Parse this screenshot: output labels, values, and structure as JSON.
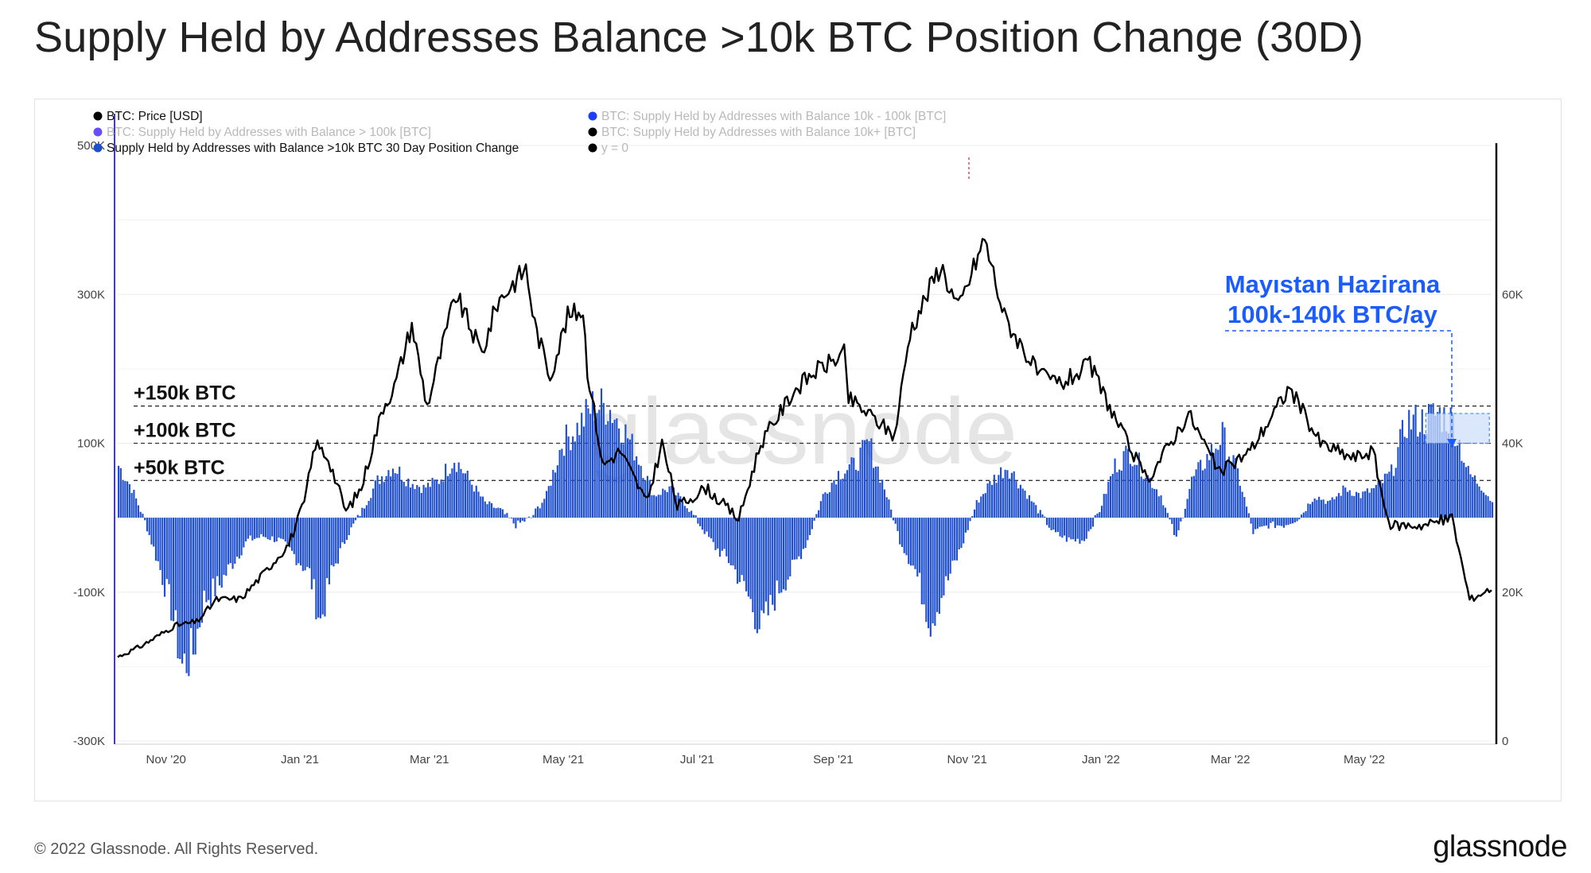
{
  "title": "Supply Held by Addresses Balance >10k BTC Position Change (30D)",
  "footer": {
    "copyright": "© 2022 Glassnode. All Rights Reserved.",
    "logo": "glassnode"
  },
  "watermark": "glassnode",
  "legend": [
    {
      "label": "BTC: Price [USD]",
      "color": "#000000",
      "active": true
    },
    {
      "label": "BTC: Supply Held by Addresses with Balance 10k - 100k [BTC]",
      "color": "#1f3cff",
      "active": false
    },
    {
      "label": "BTC: Supply Held by Addresses with Balance > 100k [BTC]",
      "color": "#6a4cff",
      "active": false
    },
    {
      "label": "BTC: Supply Held by Addresses with Balance 10k+ [BTC]",
      "color": "#000000",
      "active": false
    },
    {
      "label": "Supply Held by Addresses with Balance >10k BTC 30 Day Position Change",
      "color": "#1f4fd1",
      "active": true
    },
    {
      "label": "y = 0",
      "color": "#000000",
      "active": false
    }
  ],
  "reference_labels": [
    "+150k BTC",
    "+100k BTC",
    "+50k BTC"
  ],
  "annotation": [
    "Mayıstan Hazirana",
    "100k-140k BTC/ay"
  ],
  "colors": {
    "bars": "#1f4fd1",
    "price": "#000000",
    "annotation": "#1a5cff",
    "highlight": "#cfe0fb",
    "left_axis": "#3b3bd6"
  },
  "chart_data": {
    "type": "bar",
    "title": "Supply Held by Addresses Balance >10k BTC Position Change (30D)",
    "x_tick_labels": [
      "Nov '20",
      "Jan '21",
      "Mar '21",
      "May '21",
      "Jul '21",
      "Sep '21",
      "Nov '21",
      "Jan '22",
      "Mar '22",
      "May '22"
    ],
    "x_range": [
      "2020-10-10",
      "2022-06-28"
    ],
    "y_left": {
      "ticks": [
        "500K",
        "300K",
        "100K",
        "-100K",
        "-300K"
      ],
      "range": [
        -300000,
        500000
      ]
    },
    "y_right": {
      "ticks": [
        "60K",
        "40K",
        "20K",
        "0"
      ],
      "range": [
        0,
        80000
      ]
    },
    "reference_lines": [
      150000,
      100000,
      50000
    ],
    "grid": true,
    "legend_position": "top-left",
    "series": [
      {
        "name": "Supply Held by Addresses with Balance >10k BTC 30 Day Position Change",
        "axis": "left",
        "unit": "BTC",
        "points": [
          [
            "2020-10-10",
            70000
          ],
          [
            "2020-10-16",
            40000
          ],
          [
            "2020-10-22",
            -5000
          ],
          [
            "2020-10-28",
            -60000
          ],
          [
            "2020-11-03",
            -120000
          ],
          [
            "2020-11-08",
            -200000
          ],
          [
            "2020-11-13",
            -180000
          ],
          [
            "2020-11-18",
            -110000
          ],
          [
            "2020-11-25",
            -90000
          ],
          [
            "2020-12-01",
            -60000
          ],
          [
            "2020-12-08",
            -30000
          ],
          [
            "2020-12-15",
            -25000
          ],
          [
            "2020-12-22",
            -30000
          ],
          [
            "2020-12-29",
            -50000
          ],
          [
            "2021-01-05",
            -75000
          ],
          [
            "2021-01-10",
            -140000
          ],
          [
            "2021-01-15",
            -75000
          ],
          [
            "2021-01-22",
            -25000
          ],
          [
            "2021-01-29",
            10000
          ],
          [
            "2021-02-05",
            50000
          ],
          [
            "2021-02-12",
            70000
          ],
          [
            "2021-02-19",
            50000
          ],
          [
            "2021-02-26",
            40000
          ],
          [
            "2021-03-05",
            50000
          ],
          [
            "2021-03-12",
            80000
          ],
          [
            "2021-03-19",
            50000
          ],
          [
            "2021-03-26",
            20000
          ],
          [
            "2021-04-02",
            10000
          ],
          [
            "2021-04-09",
            -10000
          ],
          [
            "2021-04-16",
            0
          ],
          [
            "2021-04-23",
            30000
          ],
          [
            "2021-04-30",
            100000
          ],
          [
            "2021-05-07",
            120000
          ],
          [
            "2021-05-14",
            150000
          ],
          [
            "2021-05-21",
            150000
          ],
          [
            "2021-05-28",
            120000
          ],
          [
            "2021-06-04",
            80000
          ],
          [
            "2021-06-11",
            30000
          ],
          [
            "2021-06-18",
            40000
          ],
          [
            "2021-06-25",
            20000
          ],
          [
            "2021-07-02",
            -10000
          ],
          [
            "2021-07-09",
            -40000
          ],
          [
            "2021-07-16",
            -60000
          ],
          [
            "2021-07-23",
            -100000
          ],
          [
            "2021-07-30",
            -150000
          ],
          [
            "2021-08-06",
            -100000
          ],
          [
            "2021-08-13",
            -70000
          ],
          [
            "2021-08-20",
            -30000
          ],
          [
            "2021-08-27",
            30000
          ],
          [
            "2021-09-03",
            60000
          ],
          [
            "2021-09-10",
            70000
          ],
          [
            "2021-09-17",
            100000
          ],
          [
            "2021-09-24",
            40000
          ],
          [
            "2021-10-01",
            -30000
          ],
          [
            "2021-10-08",
            -70000
          ],
          [
            "2021-10-15",
            -140000
          ],
          [
            "2021-10-22",
            -90000
          ],
          [
            "2021-10-29",
            -40000
          ],
          [
            "2021-11-05",
            20000
          ],
          [
            "2021-11-12",
            50000
          ],
          [
            "2021-11-19",
            70000
          ],
          [
            "2021-11-26",
            40000
          ],
          [
            "2021-12-03",
            10000
          ],
          [
            "2021-12-10",
            -20000
          ],
          [
            "2021-12-17",
            -30000
          ],
          [
            "2021-12-24",
            -30000
          ],
          [
            "2021-12-31",
            10000
          ],
          [
            "2022-01-07",
            70000
          ],
          [
            "2022-01-14",
            90000
          ],
          [
            "2022-01-21",
            60000
          ],
          [
            "2022-01-28",
            30000
          ],
          [
            "2022-02-04",
            -30000
          ],
          [
            "2022-02-11",
            50000
          ],
          [
            "2022-02-18",
            80000
          ],
          [
            "2022-02-25",
            110000
          ],
          [
            "2022-03-04",
            60000
          ],
          [
            "2022-03-11",
            -20000
          ],
          [
            "2022-03-18",
            -10000
          ],
          [
            "2022-03-25",
            -10000
          ],
          [
            "2022-04-01",
            0
          ],
          [
            "2022-04-08",
            30000
          ],
          [
            "2022-04-15",
            20000
          ],
          [
            "2022-04-22",
            40000
          ],
          [
            "2022-04-29",
            30000
          ],
          [
            "2022-05-06",
            40000
          ],
          [
            "2022-05-13",
            60000
          ],
          [
            "2022-05-20",
            130000
          ],
          [
            "2022-05-27",
            130000
          ],
          [
            "2022-06-03",
            140000
          ],
          [
            "2022-06-10",
            130000
          ],
          [
            "2022-06-17",
            60000
          ],
          [
            "2022-06-24",
            40000
          ],
          [
            "2022-06-28",
            20000
          ]
        ]
      },
      {
        "name": "BTC: Price [USD]",
        "axis": "right",
        "unit": "USD",
        "points": [
          [
            "2020-10-10",
            11300
          ],
          [
            "2020-10-21",
            12800
          ],
          [
            "2020-11-05",
            15500
          ],
          [
            "2020-11-15",
            16000
          ],
          [
            "2020-11-24",
            19000
          ],
          [
            "2020-12-05",
            19100
          ],
          [
            "2020-12-17",
            23000
          ],
          [
            "2020-12-27",
            26500
          ],
          [
            "2021-01-03",
            32000
          ],
          [
            "2021-01-08",
            40000
          ],
          [
            "2021-01-14",
            38000
          ],
          [
            "2021-01-22",
            30800
          ],
          [
            "2021-01-29",
            34000
          ],
          [
            "2021-02-08",
            45000
          ],
          [
            "2021-02-13",
            47500
          ],
          [
            "2021-02-21",
            56000
          ],
          [
            "2021-02-28",
            45000
          ],
          [
            "2021-03-13",
            60000
          ],
          [
            "2021-03-25",
            52000
          ],
          [
            "2021-04-01",
            59000
          ],
          [
            "2021-04-14",
            63500
          ],
          [
            "2021-04-18",
            56000
          ],
          [
            "2021-04-25",
            49000
          ],
          [
            "2021-05-03",
            57000
          ],
          [
            "2021-05-10",
            58000
          ],
          [
            "2021-05-12",
            50000
          ],
          [
            "2021-05-19",
            37000
          ],
          [
            "2021-05-27",
            39000
          ],
          [
            "2021-06-08",
            32000
          ],
          [
            "2021-06-15",
            40000
          ],
          [
            "2021-06-22",
            31500
          ],
          [
            "2021-07-05",
            34000
          ],
          [
            "2021-07-20",
            29800
          ],
          [
            "2021-07-30",
            40000
          ],
          [
            "2021-08-14",
            47000
          ],
          [
            "2021-08-23",
            49500
          ],
          [
            "2021-09-06",
            52000
          ],
          [
            "2021-09-08",
            46000
          ],
          [
            "2021-09-21",
            43000
          ],
          [
            "2021-09-29",
            41000
          ],
          [
            "2021-10-06",
            55000
          ],
          [
            "2021-10-20",
            64000
          ],
          [
            "2021-10-28",
            58000
          ],
          [
            "2021-11-09",
            67500
          ],
          [
            "2021-11-18",
            57000
          ],
          [
            "2021-11-26",
            53000
          ],
          [
            "2021-12-04",
            49000
          ],
          [
            "2021-12-14",
            48000
          ],
          [
            "2021-12-27",
            50500
          ],
          [
            "2022-01-10",
            41800
          ],
          [
            "2022-01-22",
            35000
          ],
          [
            "2022-02-10",
            44000
          ],
          [
            "2022-02-24",
            36000
          ],
          [
            "2022-03-10",
            39000
          ],
          [
            "2022-03-28",
            47500
          ],
          [
            "2022-04-11",
            40000
          ],
          [
            "2022-04-26",
            38000
          ],
          [
            "2022-05-05",
            39000
          ],
          [
            "2022-05-12",
            29000
          ],
          [
            "2022-05-28",
            29000
          ],
          [
            "2022-06-10",
            30000
          ],
          [
            "2022-06-18",
            19000
          ],
          [
            "2022-06-28",
            20500
          ]
        ]
      }
    ]
  }
}
